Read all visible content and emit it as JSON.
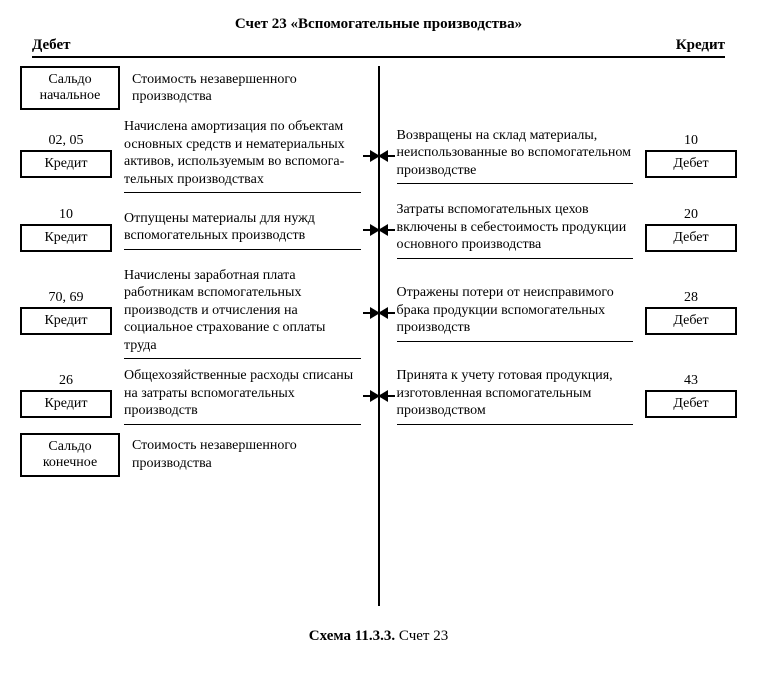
{
  "title": "Счет 23 «Вспомогательные производства»",
  "header": {
    "left": "Дебет",
    "right": "Кредит"
  },
  "caption": {
    "bold": "Схема 11.3.3.",
    "rest": " Счет 23"
  },
  "colors": {
    "line": "#000000",
    "bg": "#ffffff",
    "text": "#000000"
  },
  "saldo_start": {
    "box": "Сальдо начальное",
    "text": "Стоимость незавершенного производства"
  },
  "saldo_end": {
    "box": "Сальдо конечное",
    "text": "Стоимость незавершенного производства"
  },
  "debit_entries": [
    {
      "accounts": "02, 05",
      "side_label": "Кредит",
      "text": "Начислена амортизация по объектам основных средств и нематериальных активов, используемым во вспомога­тельных производствах"
    },
    {
      "accounts": "10",
      "side_label": "Кредит",
      "text": "Отпущены материалы для нужд вспомогательных про­изводств"
    },
    {
      "accounts": "70, 69",
      "side_label": "Кредит",
      "text": "Начислены заработная плата работникам вспомогательных производств и отчисления на социальное страхование с оплаты труда"
    },
    {
      "accounts": "26",
      "side_label": "Кредит",
      "text": "Общехозяйственные расходы списаны на затраты вспомо­гательных производств"
    }
  ],
  "credit_entries": [
    {
      "accounts": "10",
      "side_label": "Дебет",
      "text": "Возвращены на склад мате­риалы, неиспользованные во вспомогательном производстве"
    },
    {
      "accounts": "20",
      "side_label": "Дебет",
      "text": "Затраты вспомогательных цехов включены в себестои­мость продукции основного производства"
    },
    {
      "accounts": "28",
      "side_label": "Дебет",
      "text": "Отражены потери от неиспра­вимого брака продукции вспомогательных производств"
    },
    {
      "accounts": "43",
      "side_label": "Дебет",
      "text": "Принята к учету готовая про­дукция, изготовленная вспо­могательным производством"
    }
  ]
}
